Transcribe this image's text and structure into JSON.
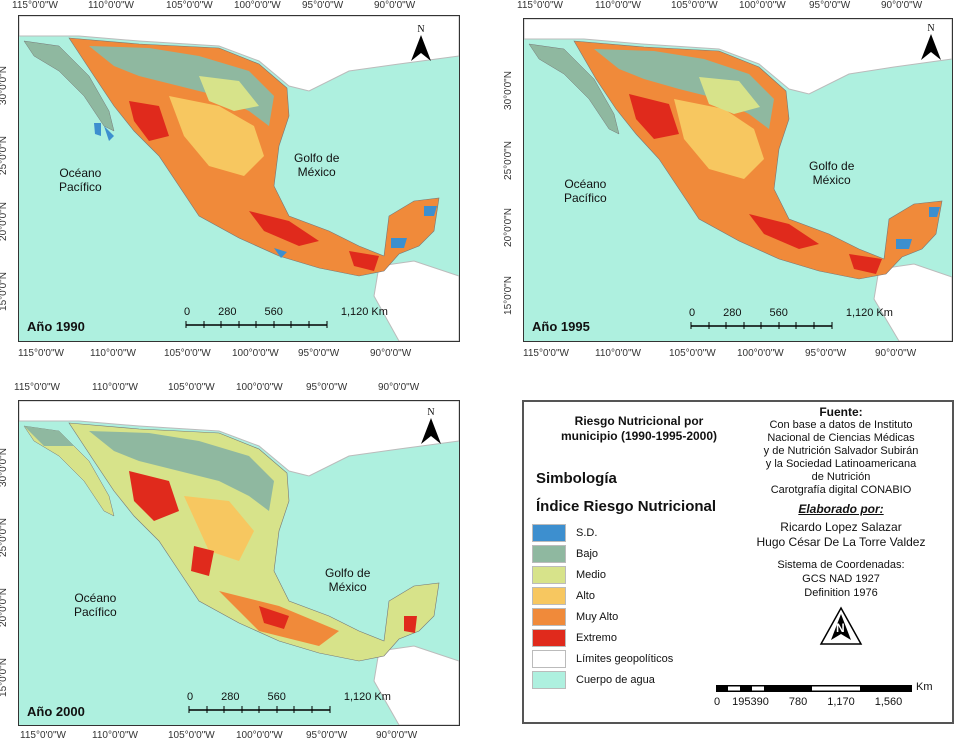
{
  "colors": {
    "sd": "#3d8fcf",
    "bajo": "#8fb8a0",
    "medio": "#d7e38a",
    "alto": "#f7c760",
    "muy_alto": "#f08a3a",
    "extremo": "#e02a1c",
    "limites": "#ffffff",
    "agua": "#aef0df"
  },
  "lon_ticks": [
    "115°0'0\"W",
    "110°0'0\"W",
    "105°0'0\"W",
    "100°0'0\"W",
    "95°0'0\"W",
    "90°0'0\"W"
  ],
  "lat_ticks": [
    "30°0'0\"N",
    "25°0'0\"N",
    "20°0'0\"N",
    "15°0'0\"N"
  ],
  "maps": [
    {
      "year": "Año 1990",
      "pacific": [
        "Océano",
        "Pacífico"
      ],
      "gulf": [
        "Golfo de",
        "México"
      ],
      "scale": {
        "nums": [
          "0",
          "280",
          "560",
          "1,120 Km"
        ]
      },
      "north": "N"
    },
    {
      "year": "Año 1995",
      "pacific": [
        "Océano",
        "Pacífico"
      ],
      "gulf": [
        "Golfo de",
        "México"
      ],
      "scale": {
        "nums": [
          "0",
          "280",
          "560",
          "1,120 Km"
        ]
      },
      "north": "N"
    },
    {
      "year": "Año 2000",
      "pacific": [
        "Océano",
        "Pacífico"
      ],
      "gulf": [
        "Golfo de",
        "México"
      ],
      "scale": {
        "nums": [
          "0",
          "280",
          "560",
          "1,120 Km"
        ]
      },
      "north": "N"
    }
  ],
  "legend": {
    "title": [
      "Riesgo Nutricional por",
      "municipio (1990-1995-2000)"
    ],
    "simbologia": "Simbología",
    "indice": "Índice Riesgo Nutricional",
    "items": [
      {
        "label": "S.D.",
        "color": "#3d8fcf"
      },
      {
        "label": "Bajo",
        "color": "#8fb8a0"
      },
      {
        "label": "Medio",
        "color": "#d7e38a"
      },
      {
        "label": "Alto",
        "color": "#f7c760"
      },
      {
        "label": "Muy Alto",
        "color": "#f08a3a"
      },
      {
        "label": "Extremo",
        "color": "#e02a1c"
      },
      {
        "label": "Límites geopolíticos",
        "color": "#ffffff"
      },
      {
        "label": "Cuerpo de agua",
        "color": "#aef0df"
      }
    ],
    "fuente_title": "Fuente:",
    "fuente_lines": [
      "Con base a datos de Instituto",
      "Nacional de Ciencias Médicas",
      "y de Nutrición Salvador Subirán",
      "y la  Sociedad Latinoamericana",
      "de Nutrición",
      "Carotgrafía digital CONABIO"
    ],
    "elaborado": "Elaborado por:",
    "authors": [
      "Ricardo Lopez Salazar",
      "Hugo César De La Torre Valdez"
    ],
    "coords": [
      "Sistema de Coordenadas:",
      "GCS NAD 1927",
      "Definition 1976"
    ],
    "north": "N",
    "scale_unit": "Km",
    "scale_nums": [
      "0",
      "195390",
      "780",
      "1,170",
      "1,560"
    ]
  }
}
